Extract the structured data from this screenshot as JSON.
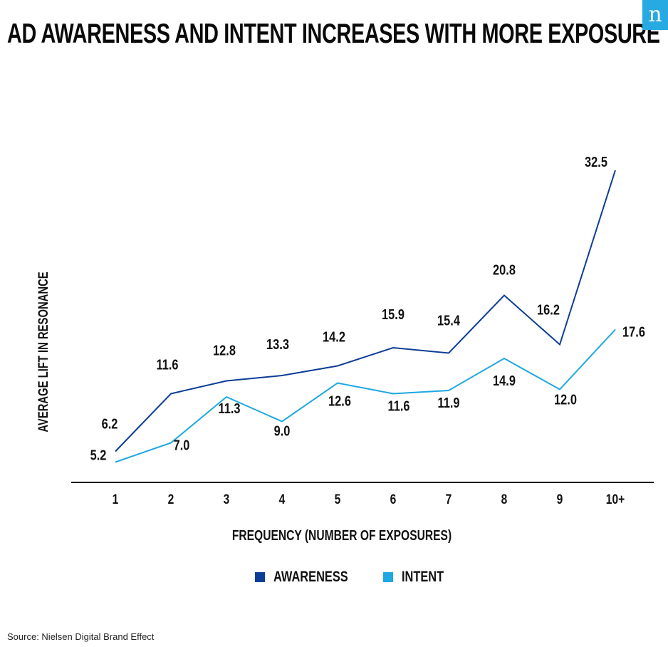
{
  "title": "AD AWARENESS AND INTENT INCREASES WITH MORE EXPOSURE",
  "logo_text": "n",
  "source": "Source: Nielsen Digital Brand Effect",
  "colors": {
    "awareness": "#0d3d96",
    "intent": "#1ea7e1",
    "axis": "#111111",
    "logo_bg": "#27a9e1"
  },
  "chart_data": {
    "type": "line",
    "xlabel": "FREQUENCY (NUMBER OF EXPOSURES)",
    "ylabel": "AVERAGE LIFT IN RESONANCE",
    "categories": [
      "1",
      "2",
      "3",
      "4",
      "5",
      "6",
      "7",
      "8",
      "9",
      "10+"
    ],
    "series": [
      {
        "name": "AWARENESS",
        "values": [
          6.2,
          11.6,
          12.8,
          13.3,
          14.2,
          15.9,
          15.4,
          20.8,
          16.2,
          32.5
        ]
      },
      {
        "name": "INTENT",
        "values": [
          5.2,
          7.0,
          11.3,
          9.0,
          12.6,
          11.6,
          11.9,
          14.9,
          12.0,
          17.6
        ]
      }
    ],
    "data_labels": {
      "AWARENESS": [
        "6.2",
        "11.6",
        "12.8",
        "13.3",
        "14.2",
        "15.9",
        "15.4",
        "20.8",
        "16.2",
        "32.5"
      ],
      "INTENT": [
        "5.2",
        "7.0",
        "11.3",
        "9.0",
        "12.6",
        "11.6",
        "11.9",
        "14.9",
        "12.0",
        "17.6"
      ]
    },
    "ylim": [
      0,
      35
    ],
    "grid": false,
    "legend_position": "bottom-center"
  }
}
